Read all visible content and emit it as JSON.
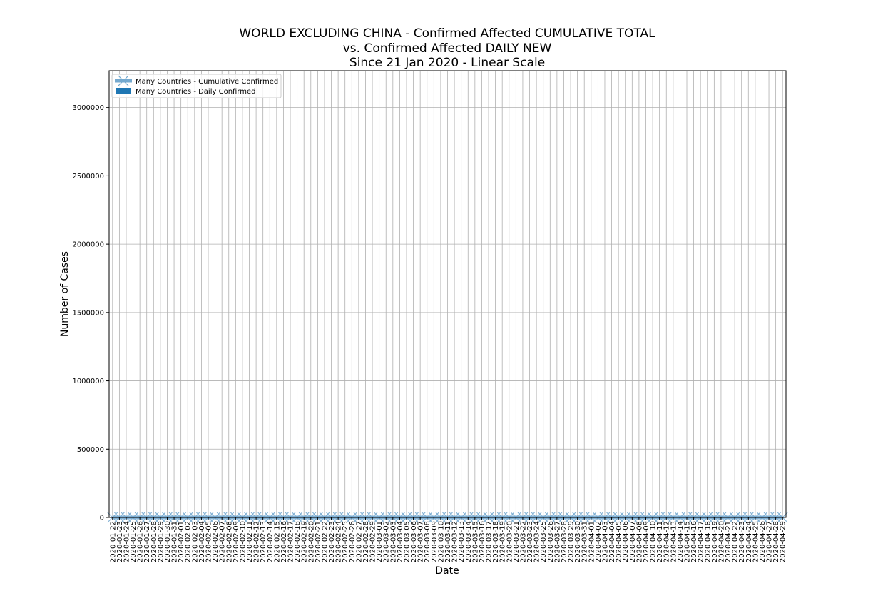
{
  "chart_data": {
    "type": "line",
    "title_lines": [
      "WORLD EXCLUDING CHINA - Confirmed Affected CUMULATIVE TOTAL",
      "vs. Confirmed Affected DAILY NEW",
      "Since 21 Jan 2020 - Linear Scale"
    ],
    "xlabel": "Date",
    "ylabel": "Number of Cases",
    "ylim": [
      0,
      3270000
    ],
    "y_ticks": [
      0,
      500000,
      1000000,
      1500000,
      2000000,
      2500000,
      3000000
    ],
    "y_tick_labels": [
      "0",
      "500000",
      "1000000",
      "1500000",
      "2000000",
      "2500000",
      "3000000"
    ],
    "grid": true,
    "legend_position": "top-left",
    "colors": {
      "cumulative": "#74a9cf",
      "daily": "#1f77b4",
      "grid": "#b0b0b0"
    },
    "dates": [
      "2020-01-22",
      "2020-01-23",
      "2020-01-24",
      "2020-01-25",
      "2020-01-26",
      "2020-01-27",
      "2020-01-28",
      "2020-01-29",
      "2020-01-30",
      "2020-01-31",
      "2020-02-01",
      "2020-02-02",
      "2020-02-03",
      "2020-02-04",
      "2020-02-05",
      "2020-02-06",
      "2020-02-07",
      "2020-02-08",
      "2020-02-09",
      "2020-02-10",
      "2020-02-11",
      "2020-02-12",
      "2020-02-13",
      "2020-02-14",
      "2020-02-15",
      "2020-02-16",
      "2020-02-17",
      "2020-02-18",
      "2020-02-19",
      "2020-02-20",
      "2020-02-21",
      "2020-02-22",
      "2020-02-23",
      "2020-02-24",
      "2020-02-25",
      "2020-02-26",
      "2020-02-27",
      "2020-02-28",
      "2020-02-29",
      "2020-03-01",
      "2020-03-02",
      "2020-03-03",
      "2020-03-04",
      "2020-03-05",
      "2020-03-06",
      "2020-03-07",
      "2020-03-08",
      "2020-03-09",
      "2020-03-10",
      "2020-03-11",
      "2020-03-12",
      "2020-03-13",
      "2020-03-14",
      "2020-03-15",
      "2020-03-16",
      "2020-03-17",
      "2020-03-18",
      "2020-03-19",
      "2020-03-20",
      "2020-03-21",
      "2020-03-22",
      "2020-03-23",
      "2020-03-24",
      "2020-03-25",
      "2020-03-26",
      "2020-03-27",
      "2020-03-28",
      "2020-03-29",
      "2020-03-30",
      "2020-03-31",
      "2020-04-01",
      "2020-04-02",
      "2020-04-03",
      "2020-04-04",
      "2020-04-05",
      "2020-04-06",
      "2020-04-07",
      "2020-04-08",
      "2020-04-09",
      "2020-04-10",
      "2020-04-11",
      "2020-04-12",
      "2020-04-13",
      "2020-04-14",
      "2020-04-15",
      "2020-04-16",
      "2020-04-17",
      "2020-04-18",
      "2020-04-19",
      "2020-04-20",
      "2020-04-21",
      "2020-04-22",
      "2020-04-23",
      "2020-04-24",
      "2020-04-25",
      "2020-04-26",
      "2020-04-27",
      "2020-04-28",
      "2020-04-29"
    ],
    "series": [
      {
        "name": "Many Countries - Cumulative Confirmed",
        "kind": "line",
        "values": [
          0,
          0,
          0,
          0,
          0,
          0,
          0,
          0,
          0,
          0,
          0,
          0,
          0,
          0,
          0,
          0,
          0,
          0,
          0,
          0,
          0,
          0,
          0,
          0,
          0,
          0,
          0,
          0,
          0,
          0,
          0,
          0,
          0,
          0,
          0,
          0,
          0,
          0,
          0,
          0,
          0,
          0,
          0,
          0,
          0,
          0,
          0,
          0,
          0,
          0,
          0,
          0,
          0,
          0,
          0,
          0,
          0,
          0,
          0,
          0,
          0,
          0,
          0,
          0,
          0,
          0,
          0,
          0,
          0,
          0,
          0,
          0,
          0,
          0,
          0,
          0,
          0,
          0,
          0,
          0,
          0,
          0,
          0,
          0,
          0,
          0,
          0,
          0,
          0,
          0,
          0,
          0,
          0,
          0,
          0,
          0,
          0,
          0,
          0
        ]
      },
      {
        "name": "Many Countries - Daily Confirmed",
        "kind": "bar",
        "values": [
          0,
          0,
          0,
          0,
          0,
          0,
          0,
          0,
          0,
          0,
          0,
          0,
          0,
          0,
          0,
          0,
          0,
          0,
          0,
          0,
          0,
          0,
          0,
          0,
          0,
          0,
          0,
          0,
          0,
          0,
          0,
          0,
          0,
          0,
          0,
          0,
          0,
          0,
          0,
          0,
          0,
          0,
          0,
          0,
          0,
          0,
          0,
          0,
          0,
          0,
          0,
          0,
          0,
          0,
          0,
          0,
          0,
          0,
          0,
          0,
          0,
          0,
          0,
          0,
          0,
          0,
          0,
          0,
          0,
          0,
          0,
          0,
          0,
          0,
          0,
          0,
          0,
          0,
          0,
          0,
          0,
          0,
          0,
          0,
          0,
          0,
          0,
          0,
          0,
          0,
          0,
          0,
          0,
          0,
          0,
          0,
          0,
          0,
          0
        ]
      }
    ]
  }
}
